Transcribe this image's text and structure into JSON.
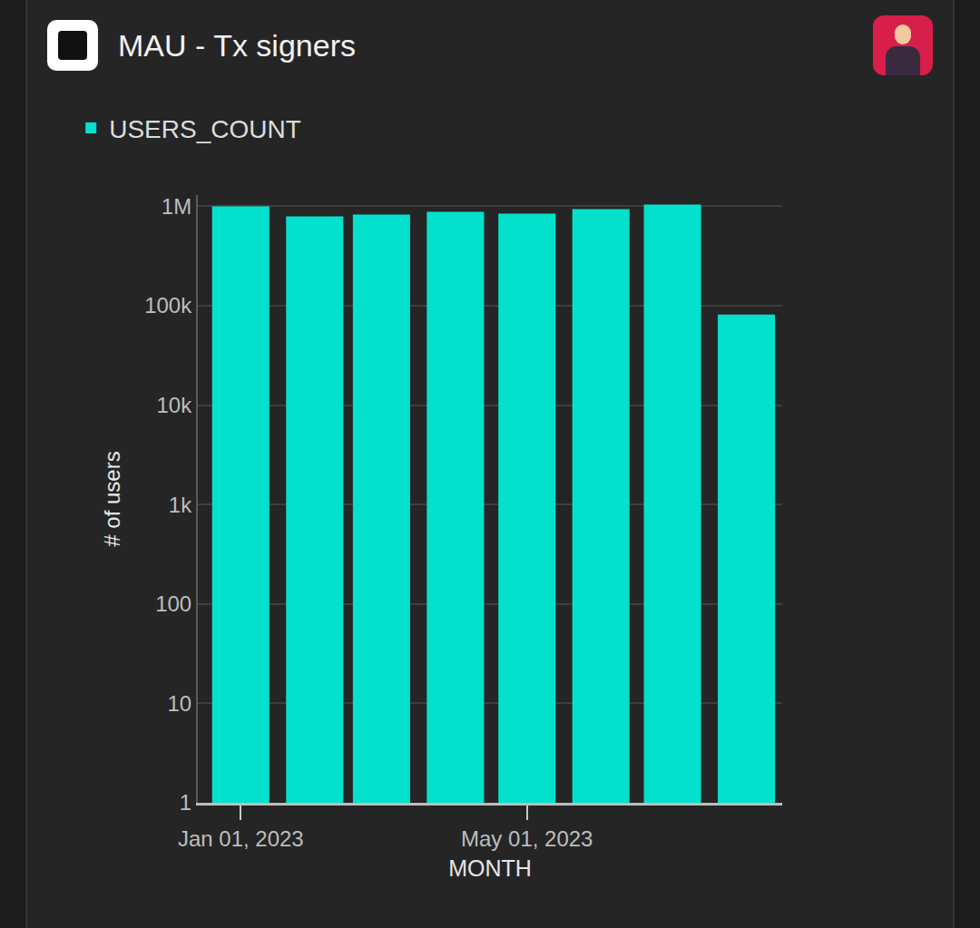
{
  "chart_data": {
    "type": "bar",
    "title": "MAU - Tx signers",
    "x": [
      "2023-01-01",
      "2023-02-01",
      "2023-03-01",
      "2023-04-01",
      "2023-05-01",
      "2023-06-01",
      "2023-07-01",
      "2023-08-01"
    ],
    "series": [
      {
        "name": "USERS_COUNT",
        "color": "#03e1cc",
        "values": [
          1000000,
          794000,
          828000,
          881000,
          845000,
          939000,
          1040000,
          81800
        ]
      }
    ],
    "x_label": "MONTH",
    "y_label": "# of users",
    "xlim": [
      "2022-12-14",
      "2023-08-16"
    ],
    "xticks": [
      {
        "value": "2023-01-01",
        "label": "Jan 01, 2023"
      },
      {
        "value": "2023-05-01",
        "label": "May 01, 2023"
      }
    ],
    "ylim": [
      1,
      1300000
    ],
    "yticks": [
      1,
      10,
      100,
      {
        "value": 1000,
        "label": "1k"
      },
      {
        "value": 10000,
        "label": "10k"
      },
      {
        "value": 100000,
        "label": "100k"
      },
      {
        "value": 1000000,
        "label": "1M"
      }
    ],
    "log": "y",
    "grid": true,
    "legend": "top left"
  }
}
